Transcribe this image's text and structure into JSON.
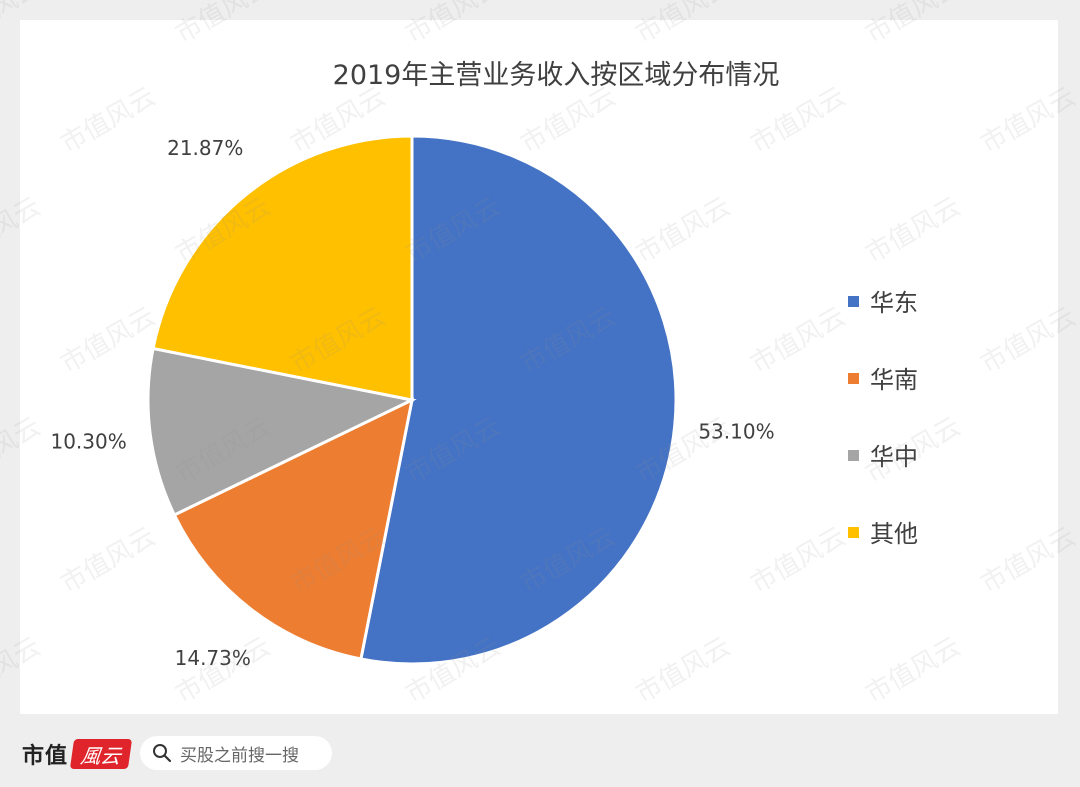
{
  "chart_data": {
    "type": "pie",
    "title": "2019年主营业务收入按区域分布情况",
    "slices": [
      {
        "name": "华东",
        "value": 53.1,
        "label": "53.10%",
        "color": "#4472c4"
      },
      {
        "name": "华南",
        "value": 14.73,
        "label": "14.73%",
        "color": "#ed7d31"
      },
      {
        "name": "华中",
        "value": 10.3,
        "label": "10.30%",
        "color": "#a5a5a5"
      },
      {
        "name": "其他",
        "value": 21.87,
        "label": "21.87%",
        "color": "#ffc000"
      }
    ],
    "legend_position": "right"
  },
  "footer": {
    "brand": "市值",
    "search_placeholder": "买股之前搜一搜"
  },
  "watermark": {
    "text": "市值风云"
  }
}
